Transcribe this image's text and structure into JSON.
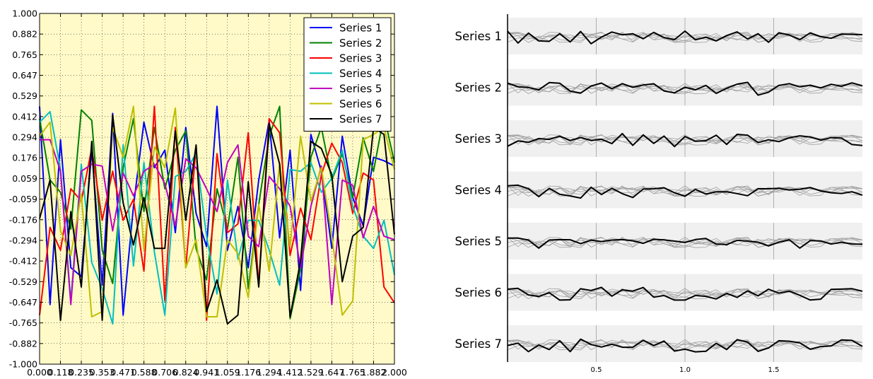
{
  "chart_data": [
    {
      "type": "line",
      "title": "",
      "xlabel": "",
      "ylabel": "",
      "xlim": [
        0.0,
        2.0
      ],
      "ylim": [
        -1.0,
        1.0
      ],
      "background": "#fffac8",
      "grid": true,
      "legend": "top-right",
      "x_ticks": [
        "0.000",
        "0.118",
        "0.235",
        "0.353",
        "0.471",
        "0.588",
        "0.706",
        "0.824",
        "0.941",
        "1.059",
        "1.176",
        "1.294",
        "1.412",
        "1.529",
        "1.647",
        "1.765",
        "1.882",
        "2.000"
      ],
      "y_ticks": [
        "1.000",
        "0.882",
        "0.765",
        "0.647",
        "0.529",
        "0.412",
        "0.294",
        "0.176",
        "0.059",
        "-0.059",
        "-0.176",
        "-0.294",
        "-0.412",
        "-0.529",
        "-0.647",
        "-0.765",
        "-0.882",
        "-1.000"
      ],
      "x": [
        0.0,
        0.059,
        0.118,
        0.176,
        0.235,
        0.294,
        0.353,
        0.412,
        0.471,
        0.529,
        0.588,
        0.647,
        0.706,
        0.765,
        0.824,
        0.882,
        0.941,
        1.0,
        1.059,
        1.118,
        1.176,
        1.235,
        1.294,
        1.353,
        1.412,
        1.471,
        1.529,
        1.588,
        1.647,
        1.706,
        1.765,
        1.824,
        1.882,
        1.941,
        2.0
      ],
      "series": [
        {
          "name": "Series 1",
          "color": "#0000ff",
          "values": [
            0.47,
            -0.66,
            0.28,
            -0.45,
            -0.5,
            0.22,
            -0.55,
            0.43,
            -0.72,
            -0.1,
            0.38,
            0.12,
            0.22,
            -0.25,
            0.35,
            -0.14,
            -0.33,
            0.47,
            -0.35,
            -0.1,
            -0.45,
            0.05,
            0.39,
            -0.28,
            0.22,
            -0.58,
            0.31,
            0.1,
            -0.34,
            0.3,
            -0.05,
            -0.21,
            0.18,
            0.16,
            0.13
          ]
        },
        {
          "name": "Series 2",
          "color": "#008000",
          "values": [
            0.4,
            0.05,
            -0.02,
            -0.23,
            0.45,
            0.39,
            -0.35,
            -0.54,
            0.12,
            0.4,
            -0.13,
            0.35,
            0.0,
            0.22,
            0.33,
            -0.34,
            -0.52,
            0.0,
            -0.23,
            0.18,
            -0.57,
            -0.09,
            0.3,
            0.47,
            -0.74,
            -0.46,
            0.18,
            0.35,
            0.05,
            0.2,
            -0.05,
            0.29,
            0.1,
            0.42,
            0.15
          ]
        },
        {
          "name": "Series 3",
          "color": "#ff0000",
          "values": [
            -0.72,
            -0.22,
            -0.35,
            0.0,
            -0.07,
            0.23,
            -0.18,
            0.1,
            -0.18,
            -0.06,
            -0.47,
            0.47,
            -0.64,
            0.35,
            -0.45,
            0.24,
            -0.75,
            0.2,
            -0.25,
            -0.2,
            0.32,
            -0.55,
            0.4,
            0.32,
            -0.38,
            -0.11,
            -0.29,
            0.08,
            0.26,
            0.15,
            -0.14,
            0.09,
            0.05,
            -0.56,
            -0.65
          ]
        },
        {
          "name": "Series 4",
          "color": "#00bfbf",
          "values": [
            0.38,
            0.44,
            0.11,
            -0.64,
            0.14,
            -0.42,
            -0.57,
            -0.77,
            0.25,
            -0.44,
            0.15,
            -0.36,
            -0.72,
            0.07,
            0.1,
            0.2,
            -0.27,
            -0.6,
            0.05,
            -0.4,
            -0.18,
            -0.18,
            -0.35,
            -0.55,
            0.11,
            0.1,
            0.15,
            -0.02,
            0.06,
            0.22,
            -0.1,
            -0.27,
            -0.34,
            -0.18,
            -0.49
          ]
        },
        {
          "name": "Series 5",
          "color": "#bf00bf",
          "values": [
            0.28,
            0.28,
            0.1,
            -0.66,
            0.1,
            0.14,
            0.13,
            -0.24,
            0.09,
            -0.04,
            0.1,
            0.14,
            0.03,
            -0.21,
            0.17,
            0.12,
            0.0,
            -0.13,
            0.15,
            0.25,
            -0.27,
            -0.33,
            0.07,
            0.0,
            -0.1,
            -0.45,
            -0.1,
            0.13,
            -0.66,
            0.05,
            0.02,
            -0.28,
            -0.1,
            -0.27,
            -0.29
          ]
        },
        {
          "name": "Series 6",
          "color": "#bfbf00",
          "values": [
            0.3,
            0.38,
            -0.24,
            -0.38,
            -0.03,
            -0.73,
            -0.7,
            0.35,
            0.18,
            0.47,
            -0.35,
            0.24,
            0.12,
            0.46,
            -0.45,
            -0.29,
            -0.73,
            -0.73,
            -0.29,
            -0.37,
            -0.62,
            -0.09,
            -0.47,
            0.15,
            -0.33,
            0.3,
            -0.07,
            0.12,
            -0.27,
            -0.72,
            -0.64,
            0.28,
            0.31,
            0.35,
            0.11
          ]
        },
        {
          "name": "Series 7",
          "color": "#000000",
          "values": [
            -0.17,
            0.05,
            -0.75,
            -0.13,
            -0.56,
            0.27,
            -0.75,
            0.42,
            -0.08,
            -0.32,
            -0.05,
            -0.34,
            -0.34,
            0.33,
            -0.18,
            0.25,
            -0.7,
            -0.52,
            -0.77,
            -0.72,
            0.04,
            -0.56,
            0.37,
            0.14,
            -0.73,
            -0.41,
            0.27,
            0.23,
            0.08,
            -0.53,
            -0.27,
            -0.22,
            0.35,
            0.31,
            -0.26
          ]
        }
      ]
    },
    {
      "type": "line",
      "title": "",
      "xlabel": "",
      "ylabel": "",
      "xlim": [
        0.0,
        2.0
      ],
      "ylim": [
        -1.0,
        1.0
      ],
      "x_ticks": [
        "0.5",
        "1.0",
        "1.5"
      ],
      "row_background": "#f0f0f0",
      "highlight_color": "#000000",
      "context_color": "#a0a0a0",
      "note": "",
      "rows": [
        "Series 1",
        "Series 2",
        "Series 3",
        "Series 4",
        "Series 5",
        "Series 6",
        "Series 7"
      ]
    }
  ]
}
